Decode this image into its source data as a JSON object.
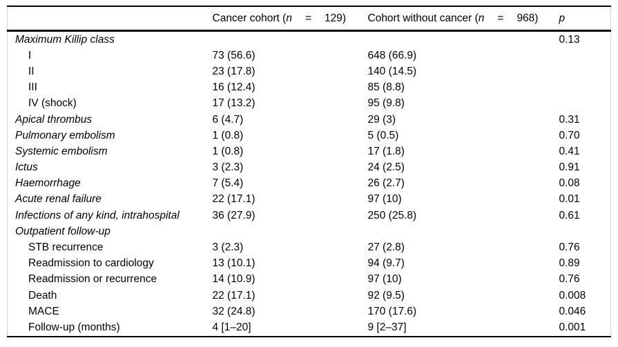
{
  "colors": {
    "rule": "#000000",
    "side_border": "#d4d4d4",
    "text": "#000000"
  },
  "table": {
    "header": {
      "label_col": "",
      "cancer_col": {
        "prefix": "Cancer cohort (",
        "n": "n",
        "eq": "=",
        "count": "129)"
      },
      "no_cancer_col": {
        "prefix": "Cohort without cancer (",
        "n": "n",
        "eq": "=",
        "count": "968)"
      },
      "p_col": "p"
    },
    "rows": [
      {
        "label": "Maximum Killip class",
        "cancer": "",
        "no_cancer": "",
        "p": "0.13",
        "italic": true,
        "indent": false
      },
      {
        "label": "I",
        "cancer": "73 (56.6)",
        "no_cancer": "648 (66.9)",
        "p": "",
        "italic": false,
        "indent": true
      },
      {
        "label": "II",
        "cancer": "23 (17.8)",
        "no_cancer": "140 (14.5)",
        "p": "",
        "italic": false,
        "indent": true
      },
      {
        "label": "III",
        "cancer": "16 (12.4)",
        "no_cancer": "85 (8.8)",
        "p": "",
        "italic": false,
        "indent": true
      },
      {
        "label": "IV (shock)",
        "cancer": "17 (13.2)",
        "no_cancer": "95 (9.8)",
        "p": "",
        "italic": false,
        "indent": true
      },
      {
        "label": "Apical thrombus",
        "cancer": "6 (4.7)",
        "no_cancer": "29 (3)",
        "p": "0.31",
        "italic": true,
        "indent": false
      },
      {
        "label": "Pulmonary embolism",
        "cancer": "1 (0.8)",
        "no_cancer": "5 (0.5)",
        "p": "0.70",
        "italic": true,
        "indent": false
      },
      {
        "label": "Systemic embolism",
        "cancer": "1 (0.8)",
        "no_cancer": "17 (1.8)",
        "p": "0.41",
        "italic": true,
        "indent": false
      },
      {
        "label": "Ictus",
        "cancer": "3 (2.3)",
        "no_cancer": "24 (2.5)",
        "p": "0.91",
        "italic": true,
        "indent": false
      },
      {
        "label": "Haemorrhage",
        "cancer": "7 (5.4)",
        "no_cancer": "26 (2.7)",
        "p": "0.08",
        "italic": true,
        "indent": false
      },
      {
        "label": "Acute renal failure",
        "cancer": "22 (17.1)",
        "no_cancer": "97 (10)",
        "p": "0.01",
        "italic": true,
        "indent": false
      },
      {
        "label": "Infections of any kind, intrahospital",
        "cancer": "36 (27.9)",
        "no_cancer": "250 (25.8)",
        "p": "0.61",
        "italic": true,
        "indent": false
      },
      {
        "label": "Outpatient follow-up",
        "cancer": "",
        "no_cancer": "",
        "p": "",
        "italic": true,
        "indent": false
      },
      {
        "label": "STB recurrence",
        "cancer": "3 (2.3)",
        "no_cancer": "27 (2.8)",
        "p": "0.76",
        "italic": false,
        "indent": true
      },
      {
        "label": "Readmission to cardiology",
        "cancer": "13 (10.1)",
        "no_cancer": "94 (9.7)",
        "p": "0.89",
        "italic": false,
        "indent": true
      },
      {
        "label": "Readmission or recurrence",
        "cancer": "14 (10.9)",
        "no_cancer": "97 (10)",
        "p": "0.76",
        "italic": false,
        "indent": true
      },
      {
        "label": "Death",
        "cancer": "22 (17.1)",
        "no_cancer": "92 (9.5)",
        "p": "0.008",
        "italic": false,
        "indent": true
      },
      {
        "label": "MACE",
        "cancer": "32 (24.8)",
        "no_cancer": "170 (17.6)",
        "p": "0.046",
        "italic": false,
        "indent": true
      },
      {
        "label": "Follow-up (months)",
        "cancer": "4 [1–20]",
        "no_cancer": "9 [2–37]",
        "p": "0.001",
        "italic": false,
        "indent": true
      }
    ]
  }
}
